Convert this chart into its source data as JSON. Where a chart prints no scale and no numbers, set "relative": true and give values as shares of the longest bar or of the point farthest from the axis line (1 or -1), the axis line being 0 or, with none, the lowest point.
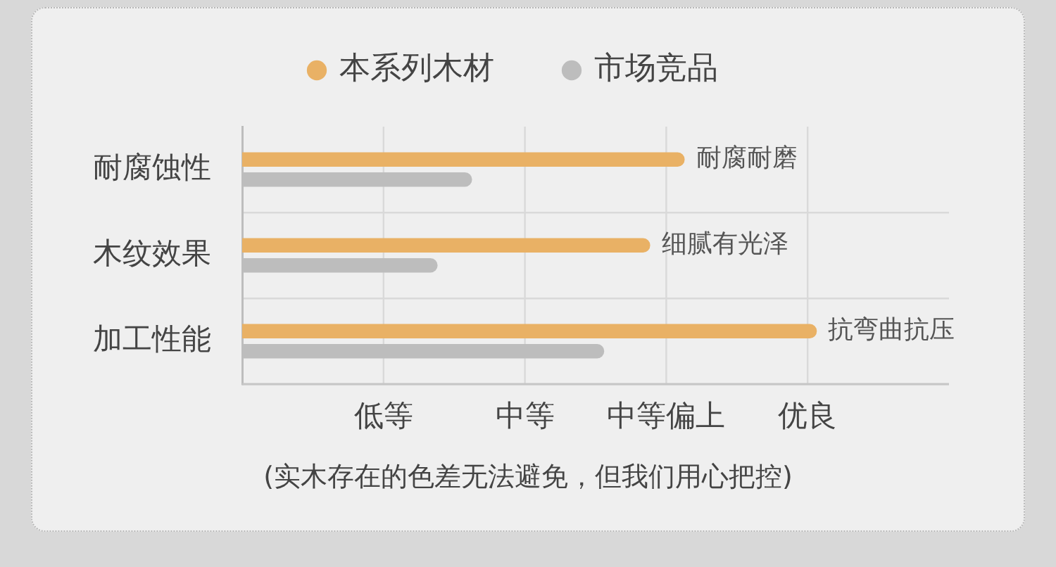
{
  "chart_data": {
    "type": "bar",
    "orientation": "horizontal",
    "relative": true,
    "categories": [
      "耐腐蚀性",
      "木纹效果",
      "加工性能"
    ],
    "series": [
      {
        "name": "本系列木材",
        "color": "#e9b165",
        "values": [
          0.77,
          0.71,
          1
        ]
      },
      {
        "name": "市场竞品",
        "color": "#bdbdbd",
        "values": [
          0.4,
          0.34,
          0.63
        ]
      }
    ],
    "grid": true,
    "legend": "top",
    "annotations": [
      "低等",
      "中等",
      "中等偏上",
      "优良",
      {
        "text": "耐腐耐磨",
        "x": 0.77,
        "y": "耐腐蚀性"
      },
      {
        "text": "细腻有光泽",
        "x": 0.71,
        "y": "木纹效果"
      },
      {
        "text": "抗弯曲抗压",
        "x": 1,
        "y": "加工性能"
      },
      "(实木存在的色差无法避免，但我们用心把控)"
    ]
  }
}
